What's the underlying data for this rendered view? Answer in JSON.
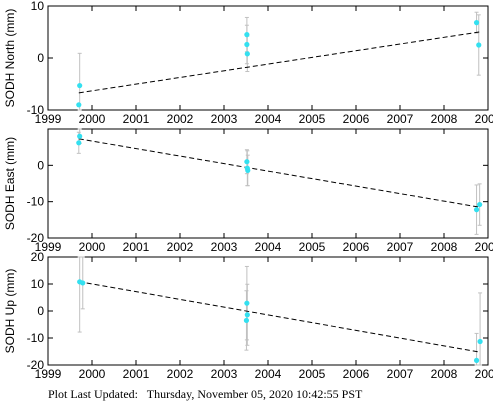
{
  "chart_data": [
    {
      "type": "scatter",
      "ylabel": "SODH North (mm)",
      "xlim": [
        1999,
        2009
      ],
      "ylim": [
        -10,
        10
      ],
      "x_ticks": [
        1999,
        2000,
        2001,
        2002,
        2003,
        2004,
        2005,
        2006,
        2007,
        2008,
        2009
      ],
      "y_ticks": [
        -10,
        0,
        10
      ],
      "show_x_tick_labels": true,
      "points": [
        {
          "x": 1999.72,
          "y": -5.3,
          "err": 6.2
        },
        {
          "x": 1999.7,
          "y": -9.0,
          "err": 0
        },
        {
          "x": 2003.52,
          "y": 4.5,
          "err": 3.3
        },
        {
          "x": 2003.52,
          "y": 2.6,
          "err": 3.7
        },
        {
          "x": 2003.53,
          "y": 0.8,
          "err": 3.4
        },
        {
          "x": 2008.74,
          "y": 6.8,
          "err": 2.0
        },
        {
          "x": 2008.79,
          "y": 2.5,
          "err": 5.8
        }
      ],
      "trend": {
        "x": [
          1999.7,
          2008.8
        ],
        "y": [
          -6.7,
          5.0
        ]
      }
    },
    {
      "type": "scatter",
      "ylabel": "SODH East (mm)",
      "xlim": [
        1999,
        2009
      ],
      "ylim": [
        -20,
        10
      ],
      "x_ticks": [
        1999,
        2000,
        2001,
        2002,
        2003,
        2004,
        2005,
        2006,
        2007,
        2008,
        2009
      ],
      "y_ticks": [
        -20,
        -10,
        0
      ],
      "show_x_tick_labels": true,
      "points": [
        {
          "x": 1999.72,
          "y": 8.0,
          "err": 2.0
        },
        {
          "x": 1999.7,
          "y": 6.2,
          "err": 2.9
        },
        {
          "x": 2003.52,
          "y": 1.0,
          "err": 3.3
        },
        {
          "x": 2003.53,
          "y": -0.8,
          "err": 4.8
        },
        {
          "x": 2003.54,
          "y": -1.4,
          "err": 4.2
        },
        {
          "x": 2008.74,
          "y": -12.2,
          "err": 6.8
        },
        {
          "x": 2008.81,
          "y": -10.8,
          "err": 5.7
        }
      ],
      "trend": {
        "x": [
          1999.7,
          2008.8
        ],
        "y": [
          7.3,
          -11.5
        ]
      }
    },
    {
      "type": "scatter",
      "ylabel": "SODH Up (mm)",
      "xlim": [
        1999,
        2009
      ],
      "ylim": [
        -20,
        20
      ],
      "x_ticks": [
        1999,
        2000,
        2001,
        2002,
        2003,
        2004,
        2005,
        2006,
        2007,
        2008,
        2009
      ],
      "y_ticks": [
        -20,
        -10,
        0,
        10,
        20
      ],
      "show_x_tick_labels": true,
      "points": [
        {
          "x": 1999.72,
          "y": 10.8,
          "err": 18.6
        },
        {
          "x": 1999.79,
          "y": 10.4,
          "err": 9.6
        },
        {
          "x": 2003.52,
          "y": 2.9,
          "err": 13.6
        },
        {
          "x": 2003.53,
          "y": -1.4,
          "err": 11.3
        },
        {
          "x": 2003.51,
          "y": -3.5,
          "err": 11.0
        },
        {
          "x": 2008.74,
          "y": -18.3,
          "err": 10.0
        },
        {
          "x": 2008.82,
          "y": -11.3,
          "err": 18.0
        }
      ],
      "trend": {
        "x": [
          1999.7,
          2008.8
        ],
        "y": [
          10.9,
          -15.2
        ]
      }
    }
  ],
  "colors": {
    "point": "#33e0f0",
    "errorbar": "#c0c0c0",
    "trend": "#000000"
  },
  "footer": {
    "label": "Plot Last Updated:",
    "date": "Thursday, November 05, 2020 10:42:55 PST"
  }
}
